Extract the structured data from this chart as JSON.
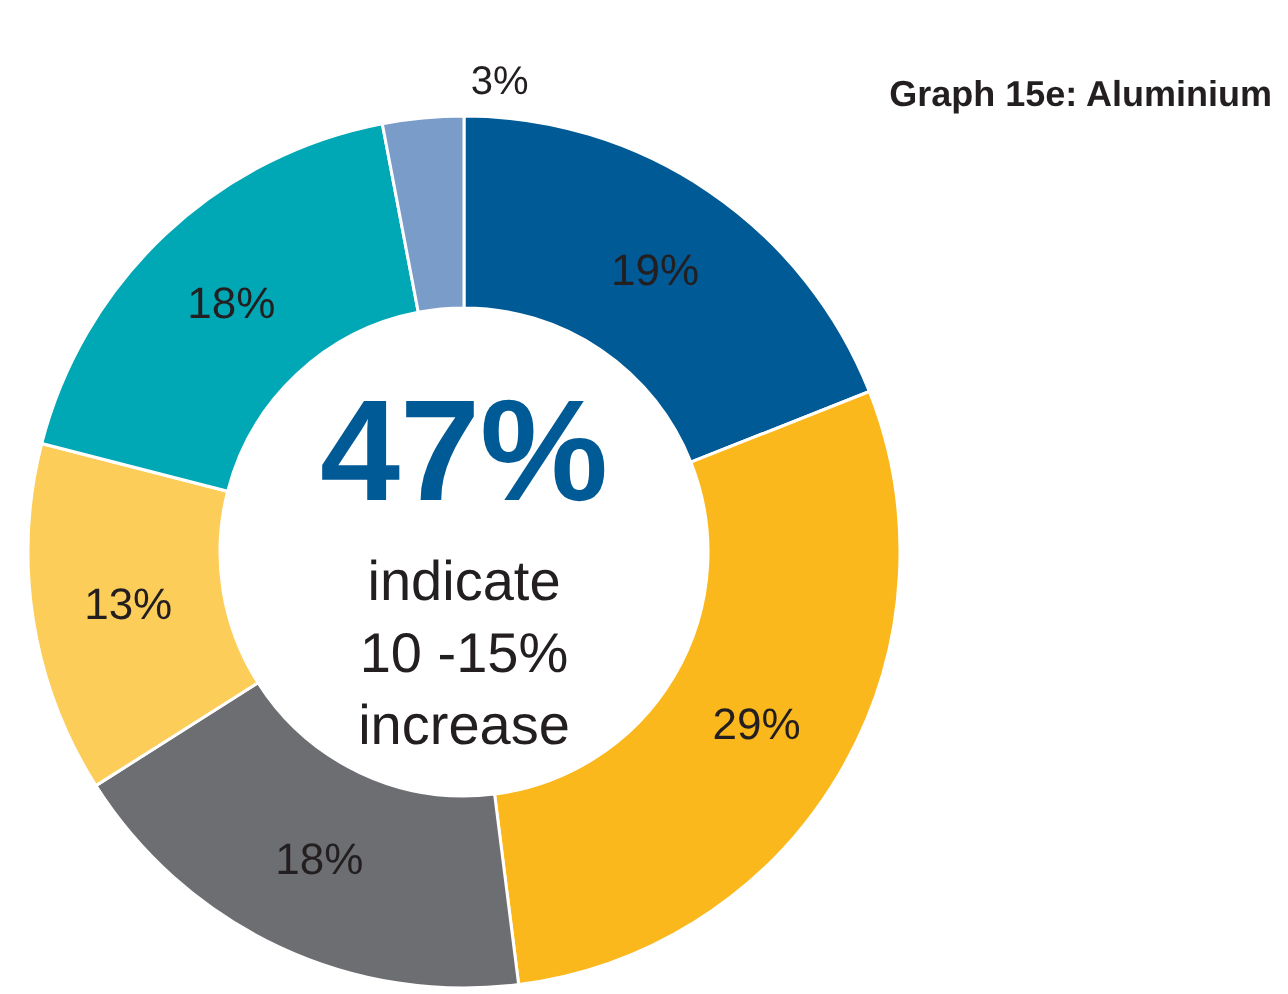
{
  "chart_data": {
    "type": "donut",
    "title": "Graph 15e: Aluminium",
    "categories": [
      null,
      null,
      null,
      null,
      null,
      null
    ],
    "values": [
      19,
      29,
      18,
      13,
      18,
      3
    ],
    "colors": [
      "#005a96",
      "#fbb81c",
      "#6d6e71",
      "#fdcd5a",
      "#00a7b5",
      "#7a9cc8"
    ],
    "value_labels": [
      "19%",
      "29%",
      "18%",
      "13%",
      "18%",
      "3%"
    ],
    "annotations": [
      "47%",
      "indicate",
      "10 -15%",
      "increase"
    ]
  }
}
